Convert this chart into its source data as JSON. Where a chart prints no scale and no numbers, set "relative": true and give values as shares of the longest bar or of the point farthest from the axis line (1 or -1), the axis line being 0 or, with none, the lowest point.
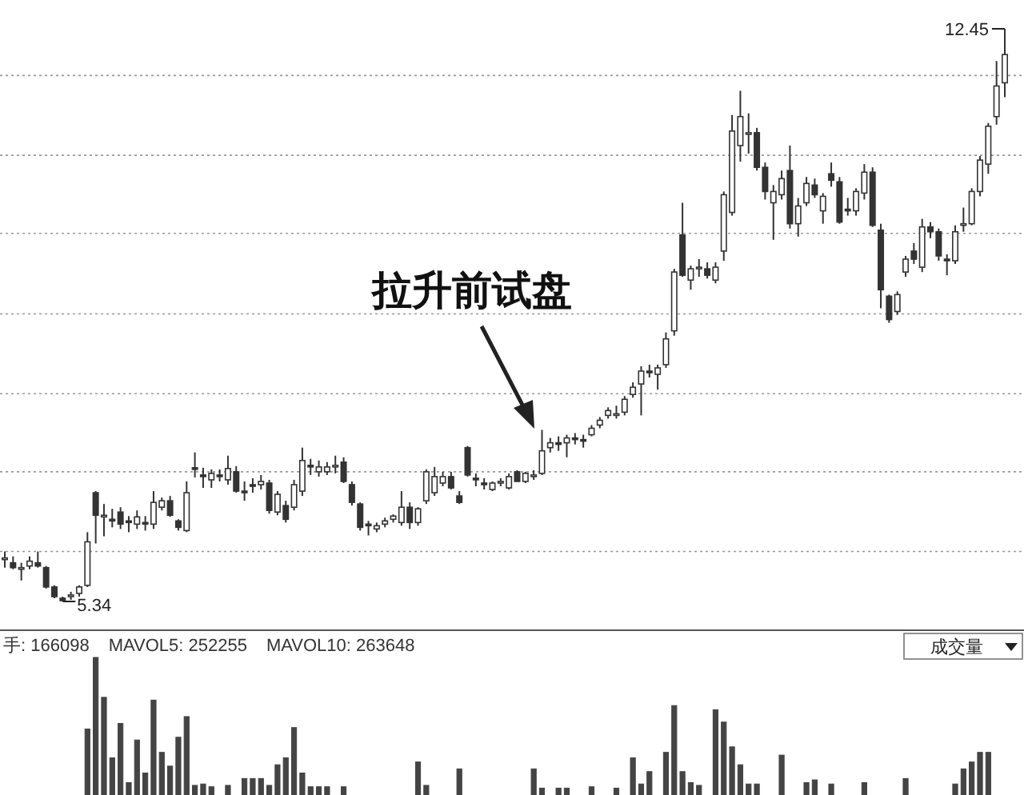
{
  "chart_data": [
    {
      "type": "candlestick",
      "color": "#333333",
      "grid": "y",
      "categories": [
        null,
        null,
        null,
        null,
        null,
        null,
        null,
        null,
        null,
        null,
        null,
        null,
        null,
        null,
        null,
        null,
        null,
        null,
        null,
        null,
        null,
        null,
        null,
        null,
        null,
        null,
        null,
        null,
        null,
        null,
        null,
        null,
        null,
        null,
        null,
        null,
        null,
        null,
        null,
        null,
        null,
        null,
        null,
        null,
        null,
        null,
        null,
        null,
        null,
        null,
        null,
        null,
        null,
        null,
        null,
        null,
        null,
        null,
        null,
        null,
        null,
        null,
        null,
        null,
        null,
        null,
        null,
        null,
        null,
        null,
        null,
        null,
        null,
        null,
        null,
        null,
        null,
        null,
        null,
        null,
        null,
        null,
        null,
        null,
        null,
        null,
        null,
        null,
        null,
        null,
        null,
        null,
        null,
        null,
        null,
        null,
        null,
        null,
        null,
        null,
        null,
        null,
        null,
        null,
        null,
        null,
        null,
        null,
        null,
        null,
        null,
        null,
        null,
        null,
        null,
        null,
        null,
        null,
        null,
        null,
        null,
        null
      ],
      "ohlc": [
        [
          5.86,
          5.96,
          5.76,
          5.88
        ],
        [
          5.82,
          5.9,
          5.74,
          5.76
        ],
        [
          5.74,
          5.82,
          5.6,
          5.76
        ],
        [
          5.78,
          5.9,
          5.74,
          5.84
        ],
        [
          5.82,
          5.96,
          5.76,
          5.78
        ],
        [
          5.76,
          5.78,
          5.5,
          5.52
        ],
        [
          5.52,
          5.54,
          5.38,
          5.4
        ],
        [
          5.38,
          5.4,
          5.34,
          5.35
        ],
        [
          5.4,
          5.46,
          5.36,
          5.42
        ],
        [
          5.44,
          5.54,
          5.4,
          5.52
        ],
        [
          5.54,
          6.2,
          5.52,
          6.08
        ],
        [
          6.69,
          6.71,
          6.06,
          6.41
        ],
        [
          6.39,
          6.55,
          6.15,
          6.41
        ],
        [
          6.36,
          6.49,
          6.26,
          6.34
        ],
        [
          6.45,
          6.51,
          6.24,
          6.3
        ],
        [
          6.34,
          6.4,
          6.2,
          6.32
        ],
        [
          6.3,
          6.47,
          6.24,
          6.39
        ],
        [
          6.32,
          6.4,
          6.22,
          6.3
        ],
        [
          6.3,
          6.71,
          6.24,
          6.57
        ],
        [
          6.51,
          6.63,
          6.47,
          6.59
        ],
        [
          6.59,
          6.65,
          6.39,
          6.41
        ],
        [
          6.34,
          6.36,
          6.22,
          6.26
        ],
        [
          6.22,
          6.83,
          6.2,
          6.69
        ],
        [
          7.0,
          7.19,
          6.88,
          6.98
        ],
        [
          6.91,
          7.0,
          6.75,
          6.89
        ],
        [
          6.85,
          6.98,
          6.75,
          6.93
        ],
        [
          6.91,
          6.98,
          6.83,
          6.89
        ],
        [
          6.85,
          7.15,
          6.79,
          6.99
        ],
        [
          6.95,
          7.02,
          6.69,
          6.71
        ],
        [
          6.71,
          6.83,
          6.59,
          6.69
        ],
        [
          6.79,
          6.87,
          6.69,
          6.77
        ],
        [
          6.79,
          6.91,
          6.73,
          6.83
        ],
        [
          6.81,
          6.85,
          6.43,
          6.47
        ],
        [
          6.45,
          6.71,
          6.41,
          6.67
        ],
        [
          6.53,
          6.59,
          6.32,
          6.36
        ],
        [
          6.51,
          6.85,
          6.47,
          6.79
        ],
        [
          6.71,
          7.25,
          6.65,
          7.09
        ],
        [
          7.03,
          7.11,
          6.91,
          7.01
        ],
        [
          6.95,
          7.09,
          6.89,
          7.01
        ],
        [
          6.95,
          7.07,
          6.91,
          7.01
        ],
        [
          7.01,
          7.15,
          6.93,
          7.03
        ],
        [
          7.07,
          7.13,
          6.81,
          6.83
        ],
        [
          6.79,
          6.83,
          6.53,
          6.57
        ],
        [
          6.55,
          6.57,
          6.22,
          6.26
        ],
        [
          6.3,
          6.34,
          6.16,
          6.28
        ],
        [
          6.24,
          6.32,
          6.2,
          6.28
        ],
        [
          6.3,
          6.38,
          6.26,
          6.34
        ],
        [
          6.36,
          6.42,
          6.32,
          6.4
        ],
        [
          6.32,
          6.71,
          6.28,
          6.51
        ],
        [
          6.51,
          6.57,
          6.24,
          6.32
        ],
        [
          6.32,
          6.51,
          6.28,
          6.49
        ],
        [
          6.59,
          6.98,
          6.55,
          6.95
        ],
        [
          6.69,
          7.01,
          6.65,
          6.89
        ],
        [
          6.81,
          6.95,
          6.77,
          6.89
        ],
        [
          6.89,
          6.95,
          6.73,
          6.75
        ],
        [
          6.65,
          6.71,
          6.55,
          6.57
        ],
        [
          7.25,
          7.27,
          6.89,
          6.91
        ],
        [
          6.87,
          6.93,
          6.77,
          6.85
        ],
        [
          6.81,
          6.87,
          6.73,
          6.79
        ],
        [
          6.73,
          6.83,
          6.71,
          6.81
        ],
        [
          6.81,
          6.87,
          6.77,
          6.83
        ],
        [
          6.75,
          6.93,
          6.73,
          6.89
        ],
        [
          6.95,
          6.97,
          6.83,
          6.83
        ],
        [
          6.83,
          6.95,
          6.81,
          6.93
        ],
        [
          6.91,
          6.97,
          6.85,
          6.91
        ],
        [
          6.93,
          7.47,
          6.91,
          7.21
        ],
        [
          7.25,
          7.37,
          7.19,
          7.31
        ],
        [
          7.31,
          7.39,
          7.21,
          7.29
        ],
        [
          7.31,
          7.41,
          7.13,
          7.37
        ],
        [
          7.37,
          7.43,
          7.29,
          7.35
        ],
        [
          7.35,
          7.41,
          7.25,
          7.33
        ],
        [
          7.41,
          7.53,
          7.39,
          7.49
        ],
        [
          7.53,
          7.63,
          7.49,
          7.59
        ],
        [
          7.65,
          7.75,
          7.61,
          7.71
        ],
        [
          7.67,
          7.77,
          7.61,
          7.67
        ],
        [
          7.69,
          7.89,
          7.65,
          7.85
        ],
        [
          7.91,
          8.06,
          7.87,
          8.0
        ],
        [
          8.04,
          8.26,
          7.65,
          8.2
        ],
        [
          8.2,
          8.28,
          8.12,
          8.18
        ],
        [
          8.16,
          8.28,
          7.97,
          8.24
        ],
        [
          8.28,
          8.68,
          8.24,
          8.6
        ],
        [
          8.7,
          9.47,
          8.64,
          9.43
        ],
        [
          9.89,
          10.29,
          9.37,
          9.39
        ],
        [
          9.33,
          9.51,
          9.21,
          9.47
        ],
        [
          9.49,
          9.59,
          9.37,
          9.49
        ],
        [
          9.47,
          9.55,
          9.35,
          9.39
        ],
        [
          9.33,
          9.55,
          9.29,
          9.49
        ],
        [
          9.69,
          10.43,
          9.57,
          10.39
        ],
        [
          10.17,
          11.38,
          10.13,
          11.18
        ],
        [
          11.0,
          11.68,
          10.8,
          11.36
        ],
        [
          11.14,
          11.4,
          10.9,
          11.16
        ],
        [
          11.16,
          11.22,
          10.69,
          10.73
        ],
        [
          10.73,
          10.79,
          10.33,
          10.43
        ],
        [
          10.29,
          10.51,
          9.83,
          10.43
        ],
        [
          10.39,
          10.69,
          10.33,
          10.59
        ],
        [
          10.69,
          11.0,
          9.97,
          10.03
        ],
        [
          10.03,
          10.35,
          9.87,
          10.25
        ],
        [
          10.29,
          10.61,
          10.25,
          10.53
        ],
        [
          10.51,
          10.59,
          10.35,
          10.39
        ],
        [
          10.19,
          10.41,
          10.03,
          10.37
        ],
        [
          10.65,
          10.79,
          10.49,
          10.57
        ],
        [
          10.55,
          10.61,
          10.03,
          10.05
        ],
        [
          10.21,
          10.35,
          10.13,
          10.19
        ],
        [
          10.19,
          10.47,
          10.13,
          10.43
        ],
        [
          10.41,
          10.77,
          10.33,
          10.67
        ],
        [
          10.67,
          10.73,
          9.99,
          10.01
        ],
        [
          9.95,
          10.03,
          8.98,
          9.21
        ],
        [
          9.13,
          9.15,
          8.8,
          8.84
        ],
        [
          8.94,
          9.19,
          8.9,
          9.15
        ],
        [
          9.43,
          9.63,
          9.37,
          9.59
        ],
        [
          9.69,
          9.79,
          9.53,
          9.59
        ],
        [
          9.49,
          10.09,
          9.43,
          9.99
        ],
        [
          9.99,
          10.05,
          9.85,
          9.93
        ],
        [
          9.93,
          9.97,
          9.57,
          9.63
        ],
        [
          9.59,
          9.65,
          9.39,
          9.57
        ],
        [
          9.57,
          10.01,
          9.53,
          9.93
        ],
        [
          10.01,
          10.23,
          9.93,
          10.03
        ],
        [
          10.03,
          10.47,
          10.01,
          10.43
        ],
        [
          10.43,
          10.87,
          10.37,
          10.82
        ],
        [
          10.77,
          11.28,
          10.65,
          11.24
        ],
        [
          11.36,
          12.05,
          11.26,
          11.74
        ],
        [
          11.78,
          12.45,
          11.6,
          12.13
        ]
      ],
      "yticks": [
        {
          "value": 11.87,
          "label": null
        },
        {
          "value": 10.88,
          "label": null
        },
        {
          "value": 9.91,
          "label": null
        },
        {
          "value": 8.91,
          "label": null
        },
        {
          "value": 7.92,
          "label": null
        },
        {
          "value": 6.95,
          "label": null
        },
        {
          "value": 5.96,
          "label": null
        }
      ],
      "annotations": [
        "12.45",
        "5.34",
        "拉升前试盘"
      ]
    },
    {
      "type": "bar",
      "relative": true,
      "color": "#444444",
      "categories": [
        null,
        null,
        null,
        null,
        null,
        null,
        null,
        null,
        null,
        null,
        null,
        null,
        null,
        null,
        null,
        null,
        null,
        null,
        null,
        null,
        null,
        null,
        null,
        null,
        null,
        null,
        null,
        null,
        null,
        null,
        null,
        null,
        null,
        null,
        null,
        null,
        null,
        null,
        null,
        null,
        null,
        null,
        null,
        null,
        null,
        null,
        null,
        null,
        null,
        null,
        null,
        null,
        null,
        null,
        null,
        null,
        null,
        null,
        null,
        null,
        null,
        null,
        null,
        null,
        null,
        null,
        null,
        null,
        null,
        null,
        null,
        null,
        null,
        null,
        null,
        null,
        null,
        null,
        null,
        null,
        null,
        null,
        null,
        null,
        null,
        null,
        null,
        null,
        null,
        null,
        null,
        null,
        null,
        null,
        null,
        null,
        null,
        null,
        null,
        null,
        null,
        null,
        null,
        null,
        null,
        null,
        null,
        null,
        null,
        null,
        null,
        null,
        null,
        null,
        null,
        null,
        null,
        null,
        null,
        null,
        null,
        null
      ],
      "values": [
        0,
        0,
        0,
        0,
        0,
        0,
        0,
        0,
        0,
        0,
        0.48,
        1,
        0.71,
        0.27,
        0.52,
        0.09,
        0.4,
        0.16,
        0.69,
        0.31,
        0.21,
        0.42,
        0.57,
        0.07,
        0.08,
        0.06,
        0,
        0.07,
        0,
        0.12,
        0.12,
        0.12,
        0.07,
        0.22,
        0.27,
        0.49,
        0.16,
        0.06,
        0.06,
        0.06,
        0,
        0.06,
        0,
        0,
        0,
        0,
        0,
        0,
        0,
        0,
        0.24,
        0.07,
        0,
        0,
        0,
        0.19,
        0,
        0,
        0,
        0,
        0,
        0,
        0,
        0,
        0.19,
        0.05,
        0,
        0.05,
        0.05,
        0,
        0,
        0.06,
        0,
        0,
        0.05,
        0,
        0.27,
        0.08,
        0.17,
        0,
        0.31,
        0.65,
        0.17,
        0.09,
        0.07,
        0,
        0.62,
        0.53,
        0.35,
        0.22,
        0.08,
        0.08,
        0,
        0,
        0.29,
        0,
        0,
        0.09,
        0.11,
        0,
        0.08,
        0,
        0,
        0,
        0.09,
        0,
        0,
        0,
        0,
        0.12,
        0,
        0,
        0,
        0,
        0,
        0.08,
        0.19,
        0.24,
        0.31,
        0.31,
        0,
        0
      ],
      "annotations": [
        "手: 166098",
        "MAVOL5: 252255",
        "MAVOL10: 263648",
        "成交量"
      ]
    }
  ]
}
